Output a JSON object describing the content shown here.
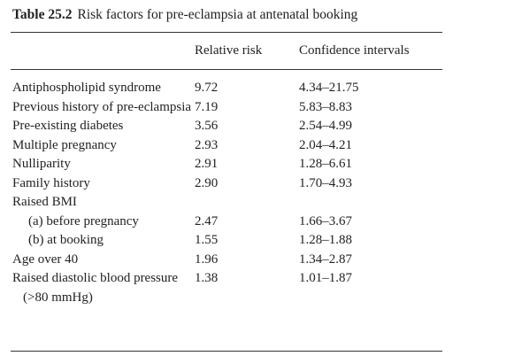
{
  "table": {
    "number": "Table 25.2",
    "title": "Risk factors for pre-eclampsia at antenatal booking",
    "columns": [
      "Relative risk",
      "Confidence intervals"
    ],
    "rows": [
      {
        "label": "Antiphospholipid syndrome",
        "cells": [
          "9.72",
          "4.34–21.75"
        ]
      },
      {
        "label": "Previous history of pre-eclampsia",
        "cells": [
          "7.19",
          "5.83–8.83"
        ]
      },
      {
        "label": "Pre-existing diabetes",
        "cells": [
          "3.56",
          "2.54–4.99"
        ]
      },
      {
        "label": "Multiple pregnancy",
        "cells": [
          "2.93",
          "2.04–4.21"
        ]
      },
      {
        "label": "Nulliparity",
        "cells": [
          "2.91",
          "1.28–6.61"
        ]
      },
      {
        "label": "Family history",
        "cells": [
          "2.90",
          "1.70–4.93"
        ]
      },
      {
        "label": "Raised BMI",
        "subrows": [
          {
            "label": "(a) before pregnancy",
            "cells": [
              "2.47",
              "1.66–3.67"
            ]
          },
          {
            "label": "(b) at booking",
            "cells": [
              "1.55",
              "1.28–1.88"
            ]
          }
        ]
      },
      {
        "label": "Age over 40",
        "cells": [
          "1.96",
          "1.34–2.87"
        ]
      },
      {
        "label": "Raised diastolic blood pressure (>80 mmHg)",
        "cells": [
          "1.38",
          "1.01–1.87"
        ]
      }
    ]
  }
}
